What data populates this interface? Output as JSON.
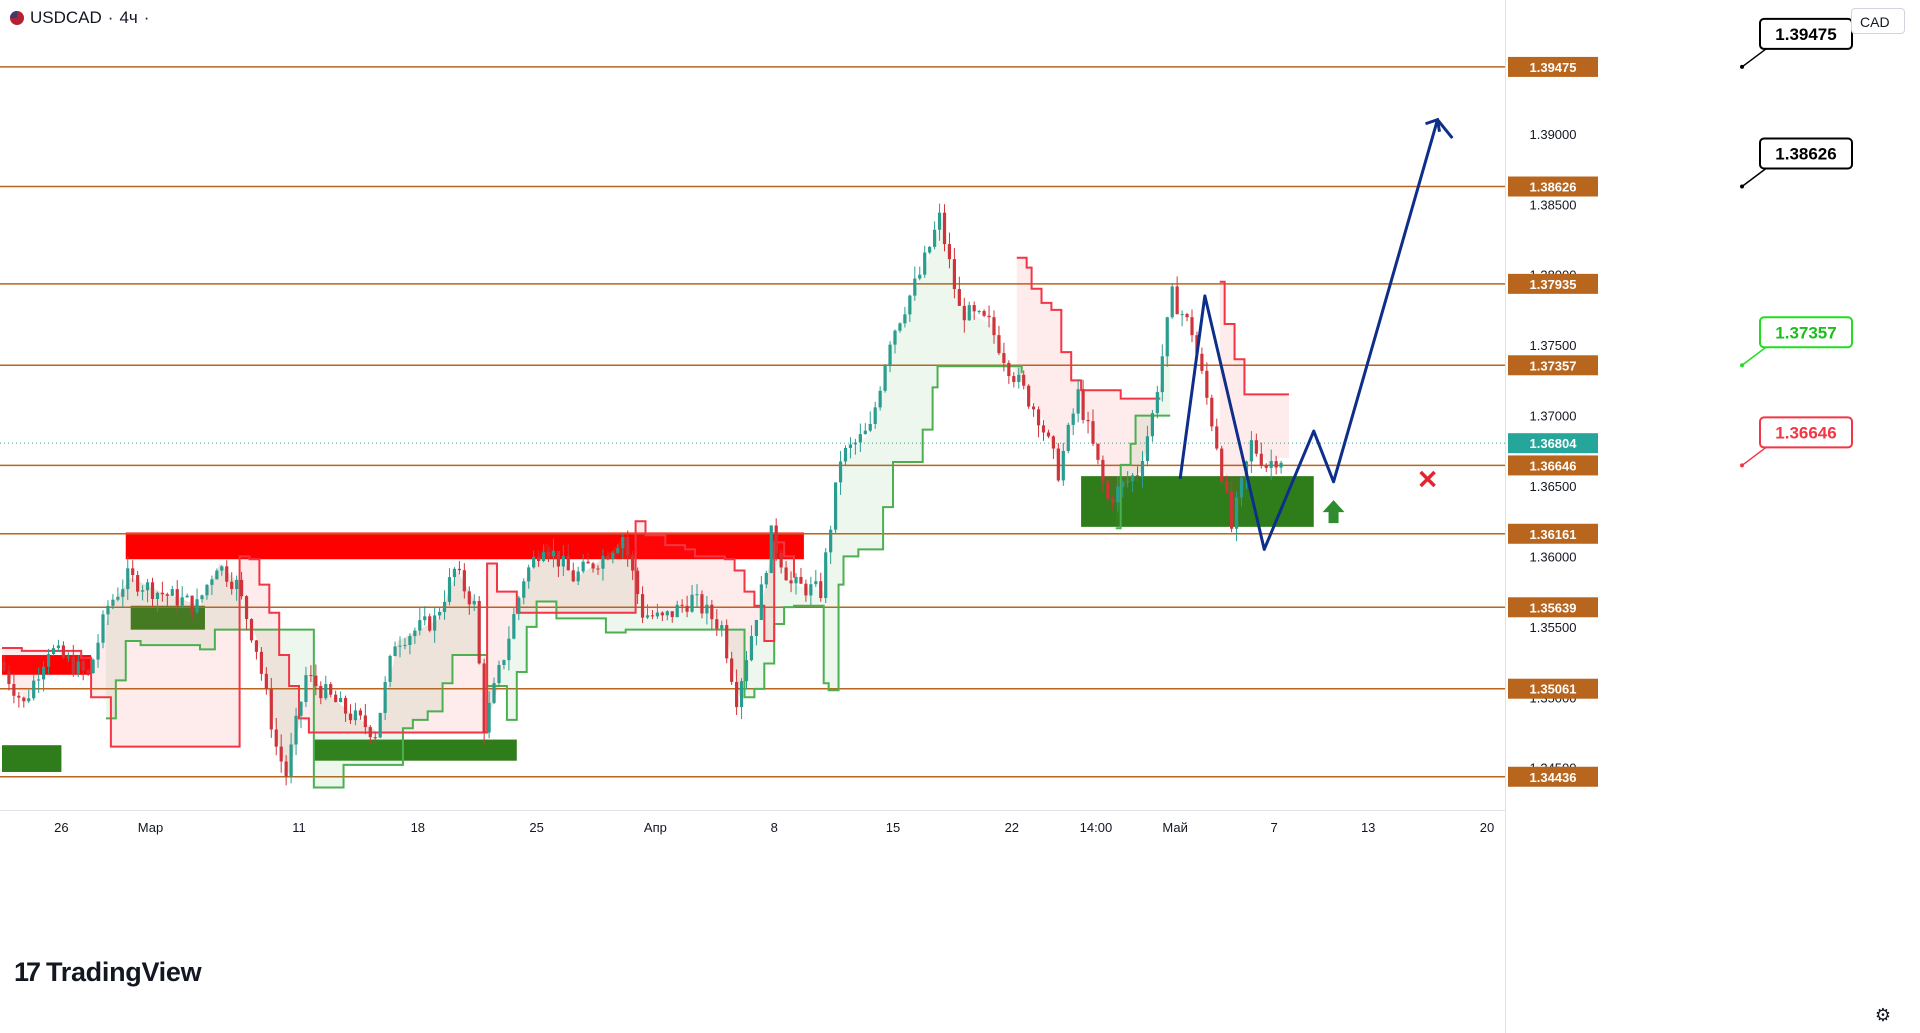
{
  "header": {
    "symbol": "USDCAD",
    "separator": "·",
    "timeframe": "4ч",
    "separator2": "·",
    "currency": "CAD"
  },
  "branding": {
    "logo_text": "TradingView",
    "logo_mark": "17"
  },
  "icons": {
    "settings": "gear-icon",
    "flag": "us-flag-icon"
  },
  "colors": {
    "level_line": "#b8651e",
    "level_tag_bg": "#b8651e",
    "bull": "#2a9d8f",
    "bear": "#d0343b",
    "supply_zone": "#ff0000",
    "demand_zone": "#2e7d1a",
    "trail_up": "#4caf50",
    "trail_down": "#f23645",
    "projection": "#0d2f8a",
    "current_price": "#26a69a"
  },
  "chart_data": {
    "type": "candlestick",
    "instrument": "USDCAD",
    "interval": "4h",
    "ylim": [
      1.342,
      1.3995
    ],
    "y_ticks": [
      "1.39000",
      "1.38500",
      "1.38000",
      "1.37500",
      "1.37000",
      "1.36500",
      "1.36000",
      "1.35500",
      "1.35000",
      "1.34500"
    ],
    "x_ticks": [
      "26",
      "Мар",
      "11",
      "18",
      "25",
      "Апр",
      "8",
      "15",
      "22",
      "14:00",
      "Май",
      "7",
      "13",
      "20"
    ],
    "x_tick_bars": [
      12,
      30,
      60,
      84,
      108,
      132,
      156,
      180,
      204,
      221,
      237,
      257,
      276,
      300
    ],
    "levels": [
      1.39475,
      1.38626,
      1.37935,
      1.37357,
      1.36646,
      1.36161,
      1.35639,
      1.35061,
      1.34436
    ],
    "level_labels": [
      "1.39475",
      "1.38626",
      "1.37935",
      "1.37357",
      "1.36646",
      "1.36161",
      "1.35639",
      "1.35061",
      "1.34436"
    ],
    "current_price": 1.36804,
    "current_price_label": "1.36804",
    "anchors": [
      [
        0,
        1.3525
      ],
      [
        5,
        1.3495
      ],
      [
        10,
        1.3535
      ],
      [
        18,
        1.3515
      ],
      [
        22,
        1.3565
      ],
      [
        26,
        1.3585
      ],
      [
        32,
        1.3575
      ],
      [
        40,
        1.3565
      ],
      [
        44,
        1.3595
      ],
      [
        48,
        1.358
      ],
      [
        52,
        1.3535
      ],
      [
        56,
        1.3465
      ],
      [
        58,
        1.3445
      ],
      [
        62,
        1.3515
      ],
      [
        70,
        1.349
      ],
      [
        76,
        1.3475
      ],
      [
        80,
        1.354
      ],
      [
        88,
        1.3555
      ],
      [
        92,
        1.359
      ],
      [
        96,
        1.3565
      ],
      [
        98,
        1.348
      ],
      [
        102,
        1.353
      ],
      [
        106,
        1.3585
      ],
      [
        110,
        1.361
      ],
      [
        116,
        1.3585
      ],
      [
        122,
        1.36
      ],
      [
        126,
        1.3615
      ],
      [
        130,
        1.356
      ],
      [
        134,
        1.3555
      ],
      [
        140,
        1.357
      ],
      [
        146,
        1.355
      ],
      [
        149,
        1.35
      ],
      [
        154,
        1.3575
      ],
      [
        156,
        1.3615
      ],
      [
        160,
        1.358
      ],
      [
        166,
        1.3575
      ],
      [
        170,
        1.367
      ],
      [
        176,
        1.369
      ],
      [
        180,
        1.3755
      ],
      [
        186,
        1.38
      ],
      [
        190,
        1.384
      ],
      [
        194,
        1.3775
      ],
      [
        200,
        1.3765
      ],
      [
        204,
        1.3735
      ],
      [
        210,
        1.37
      ],
      [
        214,
        1.366
      ],
      [
        218,
        1.3715
      ],
      [
        224,
        1.364
      ],
      [
        230,
        1.366
      ],
      [
        233,
        1.37
      ],
      [
        237,
        1.3785
      ],
      [
        241,
        1.376
      ],
      [
        246,
        1.368
      ],
      [
        249,
        1.362
      ],
      [
        253,
        1.368
      ],
      [
        256,
        1.3665
      ],
      [
        258,
        1.367
      ]
    ],
    "trail_support": [
      [
        21,
        1.3485
      ],
      [
        23,
        1.3512
      ],
      [
        25,
        1.354
      ],
      [
        28,
        1.3537
      ],
      [
        40,
        1.3534
      ],
      [
        43,
        1.3548
      ],
      [
        49,
        1.3548
      ],
      [
        63,
        1.3436
      ],
      [
        68,
        1.3436
      ],
      [
        69,
        1.3452
      ],
      [
        79,
        1.3452
      ],
      [
        81,
        1.3478
      ],
      [
        83,
        1.3484
      ],
      [
        86,
        1.349
      ],
      [
        89,
        1.351
      ],
      [
        91,
        1.353
      ],
      [
        97,
        1.353
      ],
      [
        98,
        1.3508
      ],
      [
        102,
        1.3484
      ],
      [
        104,
        1.3518
      ],
      [
        106,
        1.355
      ],
      [
        108,
        1.3568
      ],
      [
        112,
        1.3556
      ],
      [
        120,
        1.3556
      ],
      [
        122,
        1.3546
      ],
      [
        125,
        1.3546
      ],
      [
        126,
        1.3548
      ],
      [
        139,
        1.3548
      ],
      [
        150,
        1.35
      ],
      [
        152,
        1.3506
      ],
      [
        154,
        1.3524
      ],
      [
        156,
        1.3552
      ],
      [
        158,
        1.3564
      ],
      [
        160,
        1.3565
      ],
      [
        164,
        1.3565
      ],
      [
        166,
        1.351
      ],
      [
        167,
        1.3505
      ],
      [
        169,
        1.358
      ],
      [
        170,
        1.36
      ],
      [
        173,
        1.3605
      ],
      [
        177,
        1.3605
      ],
      [
        178,
        1.3635
      ],
      [
        180,
        1.3667
      ],
      [
        184,
        1.3667
      ],
      [
        186,
        1.369
      ],
      [
        188,
        1.372
      ],
      [
        189,
        1.3735
      ],
      [
        205,
        1.3735
      ],
      [
        206,
        1.373
      ]
    ],
    "trail_support_2": [
      [
        225,
        1.362
      ],
      [
        226,
        1.3665
      ],
      [
        228,
        1.368
      ],
      [
        229,
        1.37
      ],
      [
        236,
        1.37
      ]
    ],
    "trail_resistance": [
      [
        0,
        1.3535
      ],
      [
        4,
        1.3533
      ],
      [
        16,
        1.3528
      ],
      [
        18,
        1.35
      ],
      [
        22,
        1.3465
      ],
      [
        48,
        1.36
      ],
      [
        50,
        1.3598
      ],
      [
        52,
        1.358
      ],
      [
        54,
        1.356
      ],
      [
        56,
        1.353
      ],
      [
        58,
        1.3508
      ],
      [
        60,
        1.3485
      ],
      [
        62,
        1.3475
      ],
      [
        98,
        1.3595
      ],
      [
        100,
        1.3575
      ],
      [
        104,
        1.356
      ],
      [
        106,
        1.356
      ],
      [
        128,
        1.3625
      ],
      [
        130,
        1.3615
      ],
      [
        134,
        1.3608
      ],
      [
        138,
        1.3605
      ],
      [
        140,
        1.36
      ],
      [
        146,
        1.3598
      ],
      [
        148,
        1.359
      ],
      [
        150,
        1.3575
      ],
      [
        152,
        1.3565
      ],
      [
        154,
        1.354
      ],
      [
        156,
        1.361
      ],
      [
        158,
        1.36
      ],
      [
        160,
        1.3585
      ]
    ],
    "trail_resistance_2": [
      [
        205,
        1.3812
      ],
      [
        207,
        1.3805
      ],
      [
        208,
        1.379
      ],
      [
        210,
        1.378
      ],
      [
        212,
        1.3775
      ],
      [
        214,
        1.3745
      ],
      [
        216,
        1.3725
      ],
      [
        218,
        1.3718
      ],
      [
        224,
        1.3718
      ],
      [
        226,
        1.3712
      ],
      [
        234,
        1.3712
      ]
    ],
    "trail_resistance_3": [
      [
        246,
        1.3795
      ],
      [
        247,
        1.3765
      ],
      [
        249,
        1.374
      ],
      [
        251,
        1.3715
      ],
      [
        260,
        1.3715
      ]
    ],
    "supply_zones": [
      {
        "x0": 0,
        "x1": 18,
        "y0": 1.3516,
        "y1": 1.353
      },
      {
        "x0": 25,
        "x1": 162,
        "y0": 1.3598,
        "y1": 1.3617
      }
    ],
    "demand_zones": [
      {
        "x0": 0,
        "x1": 12,
        "y0": 1.3447,
        "y1": 1.3466
      },
      {
        "x0": 26,
        "x1": 41,
        "y0": 1.3548,
        "y1": 1.3565
      },
      {
        "x0": 63,
        "x1": 104,
        "y0": 1.3455,
        "y1": 1.347
      },
      {
        "x0": 218,
        "x1": 265,
        "y0": 1.3621,
        "y1": 1.3657
      }
    ],
    "projection_path": [
      [
        238,
        1.3655
      ],
      [
        243,
        1.3785
      ],
      [
        255,
        1.3605
      ],
      [
        265,
        1.3689
      ],
      [
        269,
        1.3653
      ],
      [
        290,
        1.391
      ],
      [
        293,
        1.3897
      ]
    ],
    "entry_arrow": {
      "x": 269,
      "y": 1.363
    },
    "stop_marker": {
      "x": 288,
      "y": 1.3655
    },
    "callouts": [
      {
        "label": "1.39475",
        "price": 1.39475,
        "color": "#000000",
        "bg": "#ffffff"
      },
      {
        "label": "1.38626",
        "price": 1.38626,
        "color": "#000000",
        "bg": "#ffffff"
      },
      {
        "label": "1.37357",
        "price": 1.37357,
        "color": "#22dd22",
        "bg": "#ffffff"
      },
      {
        "label": "1.36646",
        "price": 1.36646,
        "color": "#f23645",
        "bg": "#ffffff"
      }
    ]
  }
}
